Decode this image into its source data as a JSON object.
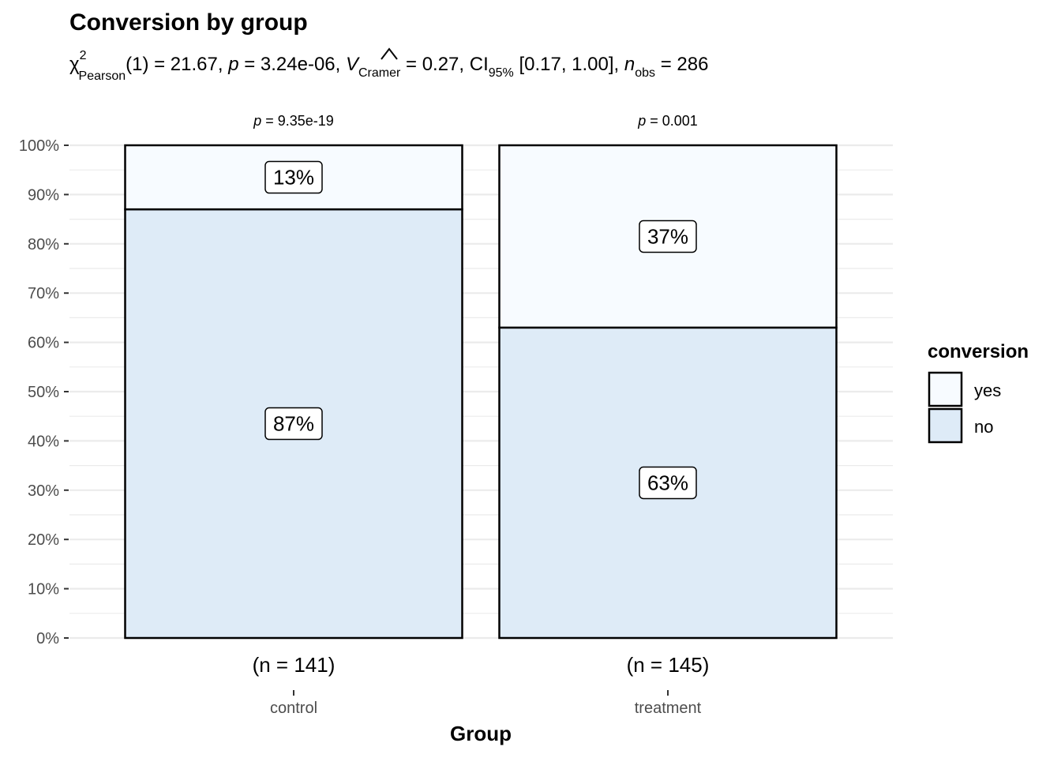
{
  "title": "Conversion by group",
  "subtitle": {
    "chi": "χ",
    "chi_sup": "2",
    "chi_sub": "Pearson",
    "part1": "(1) = 21.67, ",
    "p_sym": "p",
    "part2": " = 3.24e-06, ",
    "v_sym": "V",
    "v_sub": "Cramer",
    "part3": " = 0.27, CI",
    "ci_sub": "95%",
    "part4": " [0.17, 1.00], ",
    "n_sym": "n",
    "n_sub": "obs",
    "part5": " = 286"
  },
  "colors": {
    "yes": "#f7fbff",
    "no": "#deebf7",
    "grid": "#ebebeb",
    "border": "#000000"
  },
  "chart_data": {
    "type": "bar",
    "stacked": true,
    "categories": [
      "control",
      "treatment"
    ],
    "series": [
      {
        "name": "no",
        "values": [
          87,
          63
        ],
        "labels": [
          "87%",
          "63%"
        ]
      },
      {
        "name": "yes",
        "values": [
          13,
          37
        ],
        "labels": [
          "13%",
          "37%"
        ]
      }
    ],
    "n_labels": [
      "(n = 141)",
      "(n = 145)"
    ],
    "p_labels": [
      {
        "sym": "p",
        "rest": " = 9.35e-19"
      },
      {
        "sym": "p",
        "rest": " = 0.001"
      }
    ],
    "ylim": [
      0,
      100
    ],
    "yticks": [
      0,
      10,
      20,
      30,
      40,
      50,
      60,
      70,
      80,
      90,
      100
    ],
    "ytick_labels": [
      "0%",
      "10%",
      "20%",
      "30%",
      "40%",
      "50%",
      "60%",
      "70%",
      "80%",
      "90%",
      "100%"
    ],
    "xlabel": "Group",
    "ylabel": "",
    "legend": {
      "title": "conversion",
      "items": [
        "yes",
        "no"
      ],
      "position": "right"
    },
    "grid": true
  }
}
